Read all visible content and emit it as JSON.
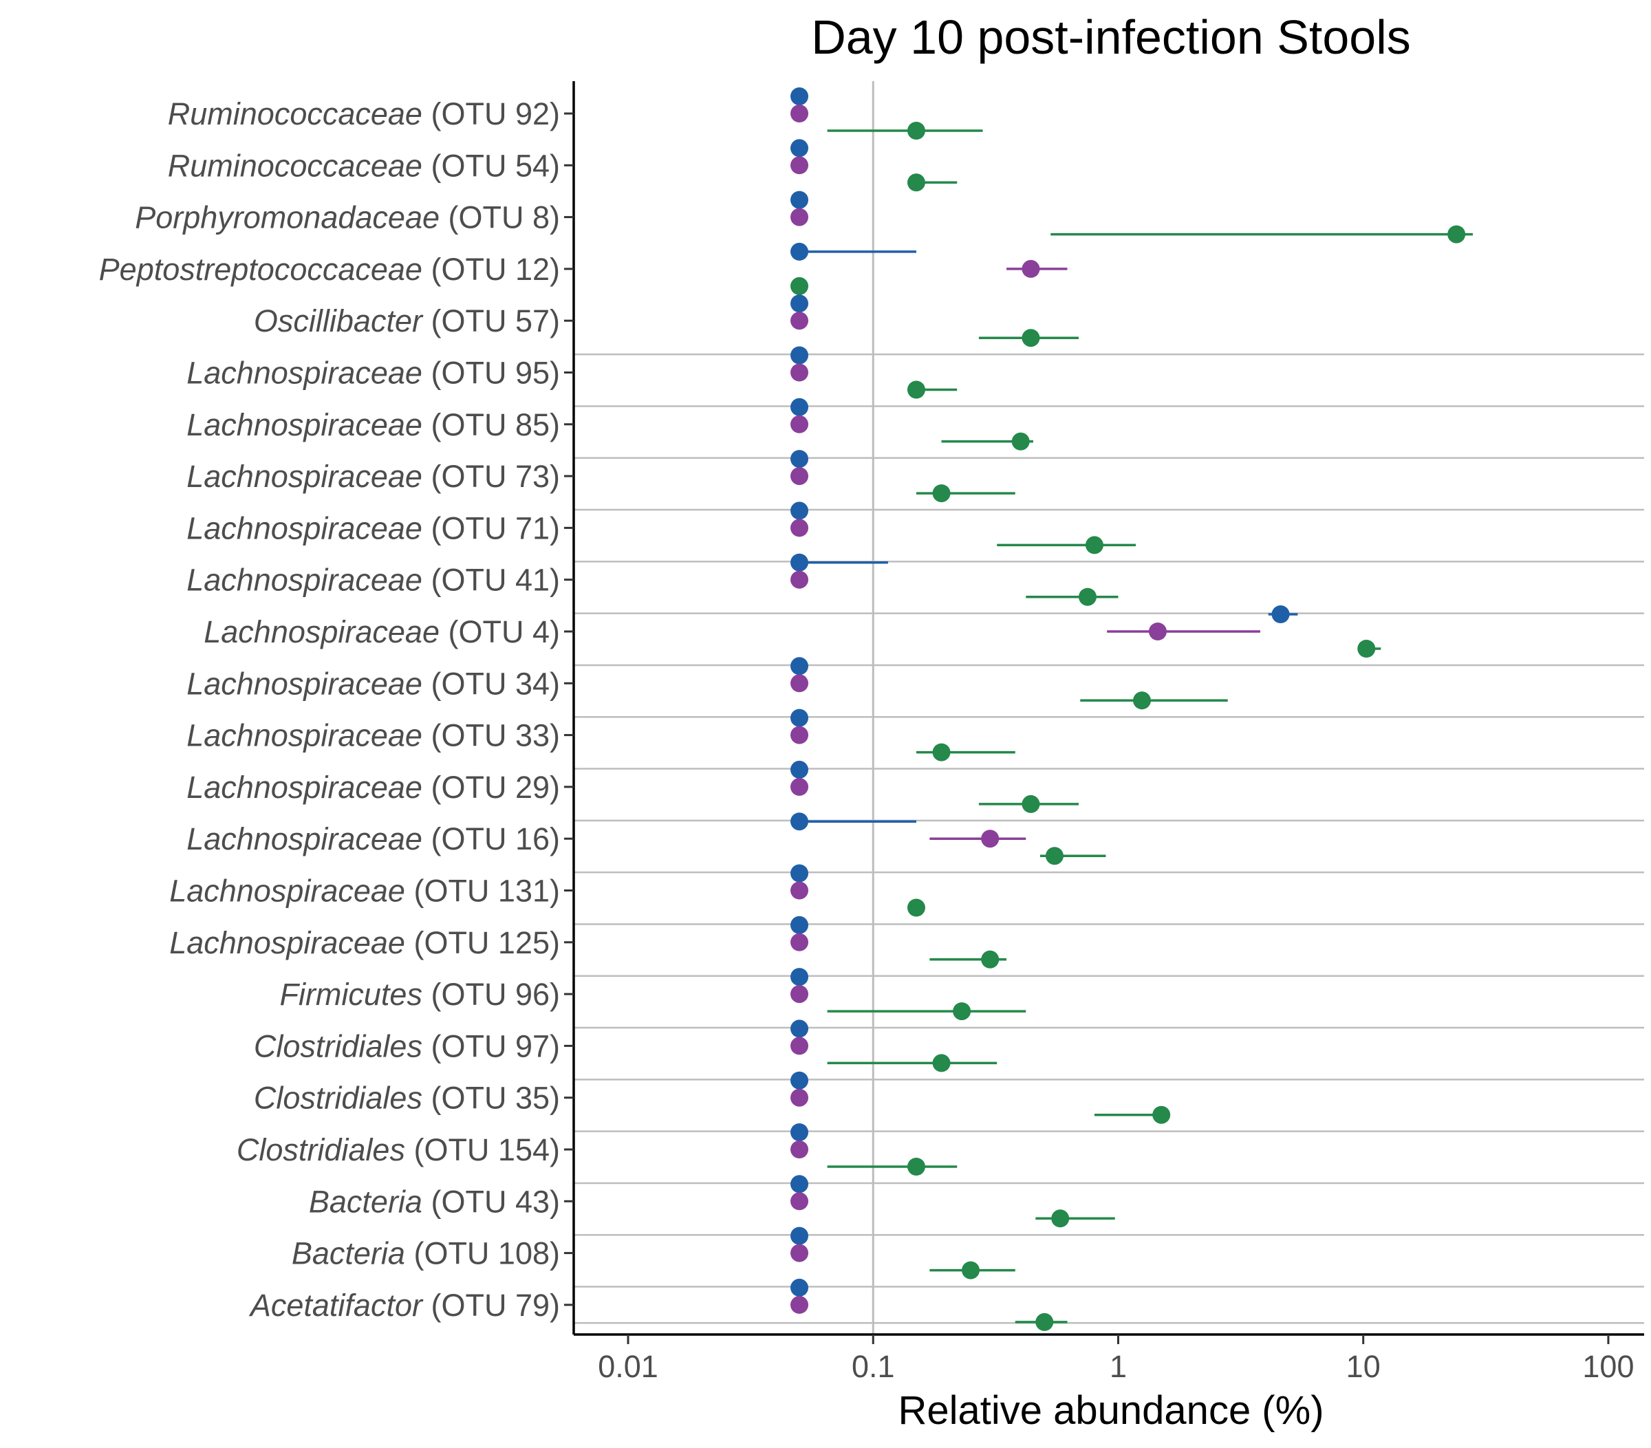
{
  "chart_data": {
    "type": "scatter",
    "title": "Day 10 post-infection Stools",
    "xlabel": "Relative abundance (%)",
    "ylabel": "",
    "x_scale": "log10",
    "xlim": [
      0.006,
      140
    ],
    "x_ticks": [
      {
        "value": 0.01,
        "label": "0.01"
      },
      {
        "value": 0.1,
        "label": "0.1"
      },
      {
        "value": 1,
        "label": "1"
      },
      {
        "value": 10,
        "label": "10"
      },
      {
        "value": 100,
        "label": "100"
      }
    ],
    "vertical_reference_line": 0.1,
    "grid": "horizontal lines between rows 5–24",
    "legend": "none",
    "series_colors": [
      "#1f5fa8",
      "#8a3f9a",
      "#24894a"
    ],
    "rows": [
      {
        "taxon": "Ruminococcaceae",
        "otu": " (OTU 92)",
        "points": [
          {
            "s": 0,
            "x": 0.05
          },
          {
            "s": 1,
            "x": 0.05
          },
          {
            "s": 2,
            "x": 0.15,
            "lo": 0.065,
            "hi": 0.28
          }
        ]
      },
      {
        "taxon": "Ruminococcaceae",
        "otu": " (OTU 54)",
        "points": [
          {
            "s": 0,
            "x": 0.05
          },
          {
            "s": 1,
            "x": 0.05
          },
          {
            "s": 2,
            "x": 0.15,
            "lo": 0.15,
            "hi": 0.22
          }
        ]
      },
      {
        "taxon": "Porphyromonadaceae",
        "otu": " (OTU 8)",
        "points": [
          {
            "s": 0,
            "x": 0.05
          },
          {
            "s": 1,
            "x": 0.05
          },
          {
            "s": 2,
            "x": 24,
            "lo": 0.53,
            "hi": 28
          }
        ]
      },
      {
        "taxon": "Peptostreptococcaceae",
        "otu": " (OTU 12)",
        "points": [
          {
            "s": 0,
            "x": 0.05,
            "lo": 0.05,
            "hi": 0.15
          },
          {
            "s": 2,
            "x": 0.05
          },
          {
            "s": 1,
            "x": 0.44,
            "lo": 0.35,
            "hi": 0.62
          }
        ]
      },
      {
        "taxon": "Oscillibacter",
        "otu": " (OTU 57)",
        "points": [
          {
            "s": 0,
            "x": 0.05
          },
          {
            "s": 1,
            "x": 0.05
          },
          {
            "s": 2,
            "x": 0.44,
            "lo": 0.27,
            "hi": 0.69
          }
        ]
      },
      {
        "taxon": "Lachnospiraceae",
        "otu": " (OTU 95)",
        "points": [
          {
            "s": 0,
            "x": 0.05
          },
          {
            "s": 1,
            "x": 0.05
          },
          {
            "s": 2,
            "x": 0.15,
            "lo": 0.15,
            "hi": 0.22
          }
        ]
      },
      {
        "taxon": "Lachnospiraceae",
        "otu": " (OTU 85)",
        "points": [
          {
            "s": 0,
            "x": 0.05
          },
          {
            "s": 1,
            "x": 0.05
          },
          {
            "s": 2,
            "x": 0.4,
            "lo": 0.19,
            "hi": 0.45
          }
        ]
      },
      {
        "taxon": "Lachnospiraceae",
        "otu": " (OTU 73)",
        "points": [
          {
            "s": 0,
            "x": 0.05
          },
          {
            "s": 1,
            "x": 0.05
          },
          {
            "s": 2,
            "x": 0.19,
            "lo": 0.15,
            "hi": 0.38
          }
        ]
      },
      {
        "taxon": "Lachnospiraceae",
        "otu": " (OTU 71)",
        "points": [
          {
            "s": 0,
            "x": 0.05
          },
          {
            "s": 1,
            "x": 0.05
          },
          {
            "s": 2,
            "x": 0.8,
            "lo": 0.32,
            "hi": 1.18
          }
        ]
      },
      {
        "taxon": "Lachnospiraceae",
        "otu": " (OTU 41)",
        "points": [
          {
            "s": 0,
            "x": 0.05,
            "lo": 0.05,
            "hi": 0.115
          },
          {
            "s": 1,
            "x": 0.05
          },
          {
            "s": 2,
            "x": 0.75,
            "lo": 0.42,
            "hi": 1.0
          }
        ]
      },
      {
        "taxon": "Lachnospiraceae",
        "otu": " (OTU 4)",
        "points": [
          {
            "s": 0,
            "x": 4.6,
            "lo": 4.1,
            "hi": 5.4
          },
          {
            "s": 1,
            "x": 1.45,
            "lo": 0.9,
            "hi": 3.8
          },
          {
            "s": 2,
            "x": 10.3,
            "lo": 9.8,
            "hi": 11.8
          }
        ]
      },
      {
        "taxon": "Lachnospiraceae",
        "otu": " (OTU 34)",
        "points": [
          {
            "s": 0,
            "x": 0.05
          },
          {
            "s": 1,
            "x": 0.05
          },
          {
            "s": 2,
            "x": 1.25,
            "lo": 0.7,
            "hi": 2.8
          }
        ]
      },
      {
        "taxon": "Lachnospiraceae",
        "otu": " (OTU 33)",
        "points": [
          {
            "s": 0,
            "x": 0.05
          },
          {
            "s": 1,
            "x": 0.05
          },
          {
            "s": 2,
            "x": 0.19,
            "lo": 0.15,
            "hi": 0.38
          }
        ]
      },
      {
        "taxon": "Lachnospiraceae",
        "otu": " (OTU 29)",
        "points": [
          {
            "s": 0,
            "x": 0.05
          },
          {
            "s": 1,
            "x": 0.05
          },
          {
            "s": 2,
            "x": 0.44,
            "lo": 0.27,
            "hi": 0.69
          }
        ]
      },
      {
        "taxon": "Lachnospiraceae",
        "otu": " (OTU 16)",
        "points": [
          {
            "s": 0,
            "x": 0.05,
            "lo": 0.05,
            "hi": 0.15
          },
          {
            "s": 2,
            "x": 0.55,
            "lo": 0.48,
            "hi": 0.89
          },
          {
            "s": 1,
            "x": 0.3,
            "lo": 0.17,
            "hi": 0.42
          }
        ]
      },
      {
        "taxon": "Lachnospiraceae",
        "otu": " (OTU 131)",
        "points": [
          {
            "s": 0,
            "x": 0.05
          },
          {
            "s": 1,
            "x": 0.05
          },
          {
            "s": 2,
            "x": 0.15
          }
        ]
      },
      {
        "taxon": "Lachnospiraceae",
        "otu": " (OTU 125)",
        "points": [
          {
            "s": 0,
            "x": 0.05
          },
          {
            "s": 1,
            "x": 0.05
          },
          {
            "s": 2,
            "x": 0.3,
            "lo": 0.17,
            "hi": 0.35
          }
        ]
      },
      {
        "taxon": "Firmicutes",
        "otu": " (OTU 96)",
        "points": [
          {
            "s": 0,
            "x": 0.05
          },
          {
            "s": 1,
            "x": 0.05
          },
          {
            "s": 2,
            "x": 0.23,
            "lo": 0.065,
            "hi": 0.42
          }
        ]
      },
      {
        "taxon": "Clostridiales",
        "otu": " (OTU 97)",
        "points": [
          {
            "s": 0,
            "x": 0.05
          },
          {
            "s": 1,
            "x": 0.05
          },
          {
            "s": 2,
            "x": 0.19,
            "lo": 0.065,
            "hi": 0.32
          }
        ]
      },
      {
        "taxon": "Clostridiales",
        "otu": " (OTU 35)",
        "points": [
          {
            "s": 0,
            "x": 0.05
          },
          {
            "s": 1,
            "x": 0.05
          },
          {
            "s": 2,
            "x": 1.5,
            "lo": 0.8,
            "hi": 1.5
          }
        ]
      },
      {
        "taxon": "Clostridiales",
        "otu": " (OTU 154)",
        "points": [
          {
            "s": 0,
            "x": 0.05
          },
          {
            "s": 1,
            "x": 0.05
          },
          {
            "s": 2,
            "x": 0.15,
            "lo": 0.065,
            "hi": 0.22
          }
        ]
      },
      {
        "taxon": "Bacteria",
        "otu": " (OTU 43)",
        "points": [
          {
            "s": 0,
            "x": 0.05
          },
          {
            "s": 1,
            "x": 0.05
          },
          {
            "s": 2,
            "x": 0.58,
            "lo": 0.46,
            "hi": 0.97
          }
        ]
      },
      {
        "taxon": "Bacteria",
        "otu": " (OTU 108)",
        "points": [
          {
            "s": 0,
            "x": 0.05
          },
          {
            "s": 1,
            "x": 0.05
          },
          {
            "s": 2,
            "x": 0.25,
            "lo": 0.17,
            "hi": 0.38
          }
        ]
      },
      {
        "taxon": "Acetatifactor",
        "otu": " (OTU 79)",
        "points": [
          {
            "s": 0,
            "x": 0.05
          },
          {
            "s": 1,
            "x": 0.05
          },
          {
            "s": 2,
            "x": 0.5,
            "lo": 0.38,
            "hi": 0.62
          }
        ]
      }
    ]
  }
}
